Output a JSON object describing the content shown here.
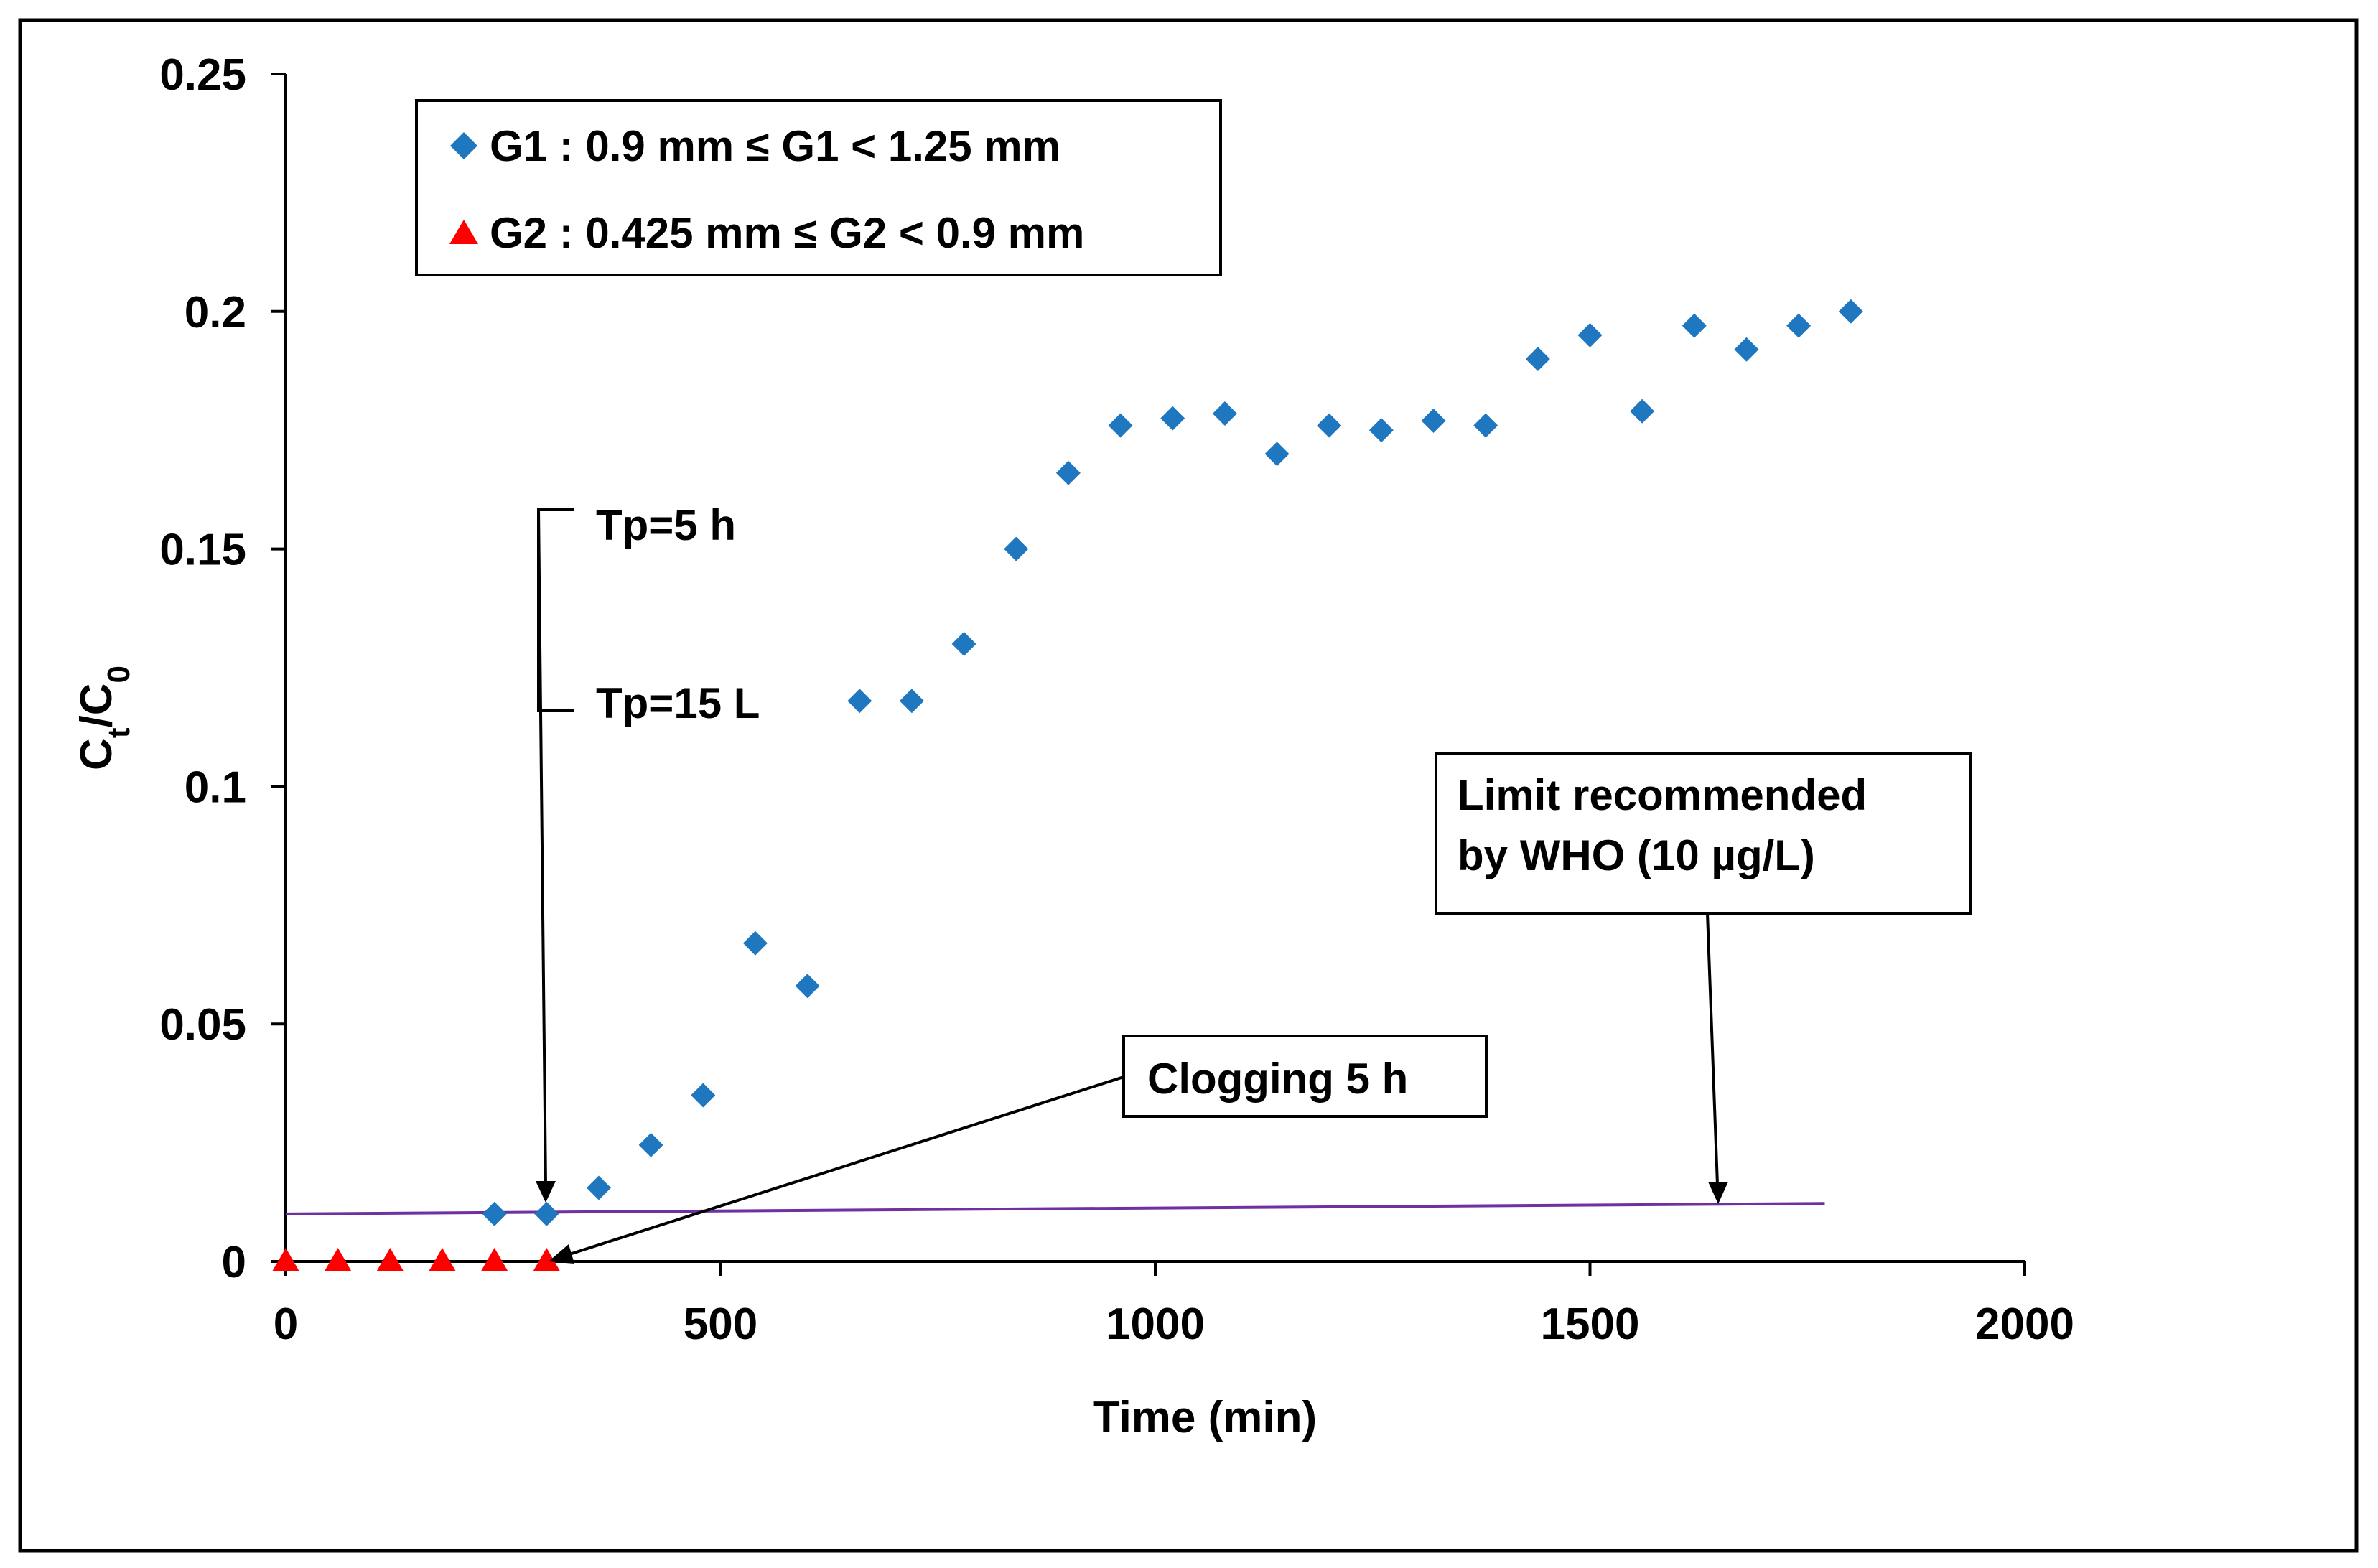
{
  "chart_data": {
    "type": "scatter",
    "title": "",
    "xlabel": "Time (min)",
    "ylabel_main": "C",
    "ylabel_sub1": "t",
    "ylabel_slash": "/C",
    "ylabel_sub2": "0",
    "xlim": [
      0,
      2000
    ],
    "ylim": [
      0,
      0.25
    ],
    "xticks": [
      0,
      500,
      1000,
      1500,
      2000
    ],
    "xtick_labels": [
      "0",
      "500",
      "1000",
      "1500",
      "2000"
    ],
    "yticks": [
      0,
      0.05,
      0.1,
      0.15,
      0.2,
      0.25
    ],
    "ytick_labels": [
      "0",
      "0.05",
      "0.1",
      "0.15",
      "0.2",
      "0.25"
    ],
    "grid": false,
    "legend_position": "top-left",
    "series": [
      {
        "name": "G1 : 0.9 mm ≤ G1 < 1.25 mm",
        "marker": "diamond",
        "color": "#1F77C0",
        "x": [
          240,
          300,
          360,
          420,
          480,
          540,
          600,
          660,
          720,
          780,
          840,
          900,
          960,
          1020,
          1080,
          1140,
          1200,
          1260,
          1320,
          1380,
          1440,
          1500,
          1560,
          1620,
          1680,
          1740,
          1800
        ],
        "y": [
          0.01,
          0.01,
          0.0155,
          0.0245,
          0.035,
          0.067,
          0.058,
          0.118,
          0.118,
          0.13,
          0.15,
          0.166,
          0.176,
          0.1775,
          0.1785,
          0.17,
          0.176,
          0.175,
          0.177,
          0.176,
          0.19,
          0.195,
          0.179,
          0.197,
          0.192,
          0.197,
          0.2
        ]
      },
      {
        "name": "G2 : 0.425 mm ≤ G2 < 0.9 mm",
        "marker": "triangle",
        "color": "#FF0000",
        "x": [
          0,
          60,
          120,
          180,
          240,
          300
        ],
        "y": [
          0,
          0,
          0,
          0,
          0,
          0
        ]
      }
    ],
    "who_limit_line": {
      "color": "#7030A0",
      "x": [
        0,
        1770
      ],
      "y": [
        0.01,
        0.0122
      ]
    },
    "annotations": {
      "tp_hours": "Tp=5 h",
      "tp_liters": "Tp=15 L",
      "who_line1": "Limit recommended",
      "who_line2": "by WHO (10 µg/L)",
      "clogging": "Clogging 5 h"
    }
  }
}
